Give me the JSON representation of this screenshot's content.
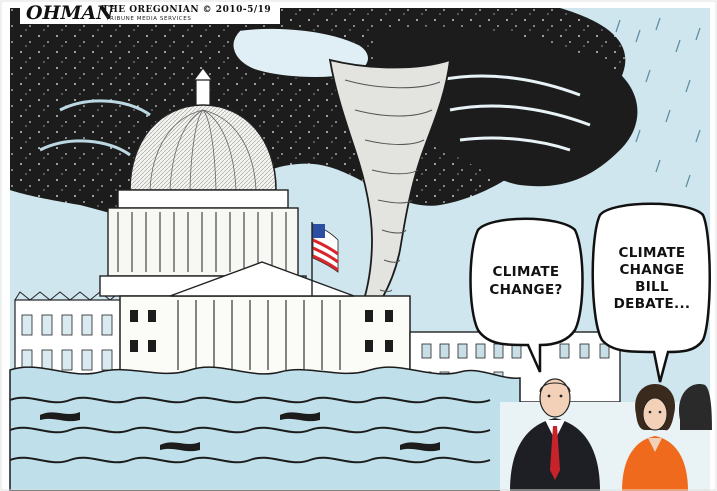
{
  "signature": "OHMAN",
  "credit_line": "THE OREGONIAN © 2010-5/19",
  "credit_sub": "TRIBUNE MEDIA SERVICES",
  "bubble_left": {
    "line1": "CLIMATE",
    "line2": "CHANGE?"
  },
  "bubble_right": {
    "line1": "CLIMATE",
    "line2": "CHANGE",
    "line3": "BILL",
    "line4": "DEBATE..."
  },
  "colors": {
    "sky_light": "#cfe6ee",
    "storm": "#1c1c1c",
    "water": "#bfe0ea",
    "flag_red": "#d8252a",
    "flag_blue": "#2c4fa3",
    "woman_top": "#ef6a1d",
    "tie": "#c8232a",
    "suit": "#1e1f24"
  },
  "icons": [
    "capitol-dome",
    "tornado",
    "flood-waves",
    "us-flag",
    "speech-bubble",
    "rain-drops"
  ]
}
